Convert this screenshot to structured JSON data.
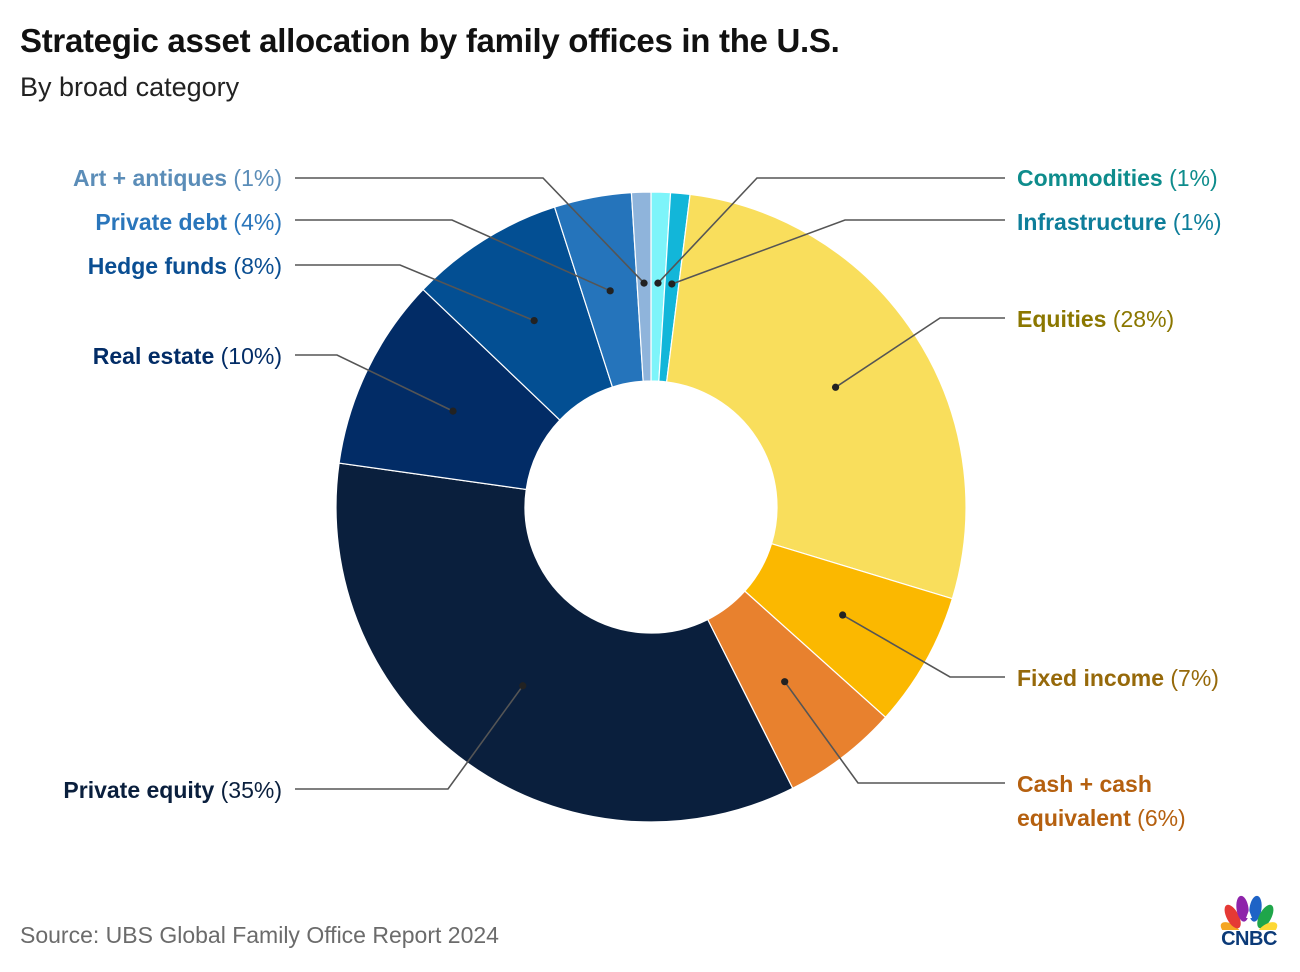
{
  "title": "Strategic asset allocation by family offices in the U.S.",
  "subtitle": "By broad category",
  "source": "Source: UBS Global Family Office Report 2024",
  "logo": {
    "text": "CNBC",
    "icon": "peacock-icon"
  },
  "chart_data": {
    "type": "pie",
    "variant": "donut",
    "title": "Strategic asset allocation by family offices in the U.S.",
    "subtitle": "By broad category",
    "unit": "%",
    "slices": [
      {
        "name": "Commodities",
        "value": 1,
        "pct_text": "(1%)",
        "color": "#7DF4FA",
        "label_color": "#0E8C8C",
        "side": "right"
      },
      {
        "name": "Infrastructure",
        "value": 1,
        "pct_text": "(1%)",
        "color": "#12B6D9",
        "label_color": "#0E7E9A",
        "side": "right"
      },
      {
        "name": "Equities",
        "value": 28,
        "pct_text": "(28%)",
        "color": "#F9DE5C",
        "label_color": "#8B7700",
        "side": "right"
      },
      {
        "name": "Fixed income",
        "value": 7,
        "pct_text": "(7%)",
        "color": "#FBB800",
        "label_color": "#96690A",
        "side": "right"
      },
      {
        "name": "Cash + cash equivalent",
        "name_lines": [
          "Cash + cash",
          "equivalent"
        ],
        "value": 6,
        "pct_text": "(6%)",
        "color": "#E8812E",
        "label_color": "#B5600F",
        "side": "right"
      },
      {
        "name": "Private equity",
        "value": 35,
        "pct_text": "(35%)",
        "color": "#0A1F3D",
        "label_color": "#0A1F3D",
        "side": "left"
      },
      {
        "name": "Real estate",
        "value": 10,
        "pct_text": "(10%)",
        "color": "#022C66",
        "label_color": "#022C66",
        "side": "left"
      },
      {
        "name": "Hedge funds",
        "value": 8,
        "pct_text": "(8%)",
        "color": "#034F93",
        "label_color": "#0A4E92",
        "side": "left"
      },
      {
        "name": "Private debt",
        "value": 4,
        "pct_text": "(4%)",
        "color": "#2574BB",
        "label_color": "#2A76BB",
        "side": "left"
      },
      {
        "name": "Art + antiques",
        "value": 1,
        "pct_text": "(1%)",
        "color": "#8FB4DB",
        "label_color": "#5B8DB8",
        "side": "left"
      }
    ]
  }
}
